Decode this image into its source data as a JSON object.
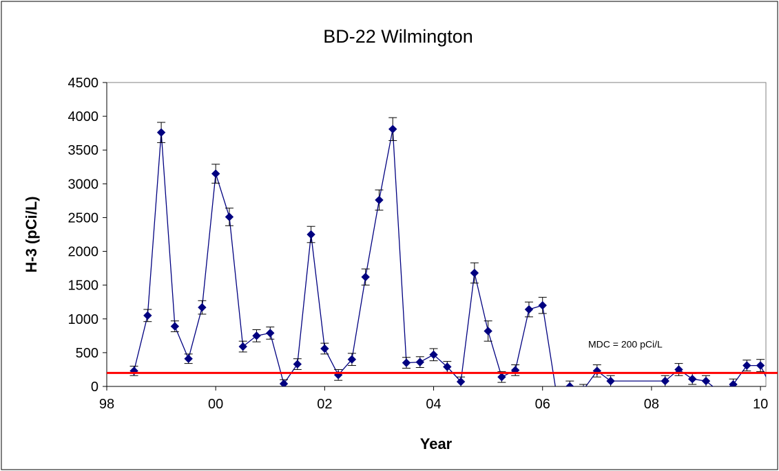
{
  "chart_data": {
    "type": "line",
    "title": "BD-22 Wilmington",
    "xlabel": "Year",
    "ylabel": "H-3 (pCi/L)",
    "xlim": [
      1998,
      2010.1
    ],
    "ylim": [
      0,
      4500
    ],
    "y_ticks": [
      0,
      500,
      1000,
      1500,
      2000,
      2500,
      3000,
      3500,
      4000,
      4500
    ],
    "x_ticks": [
      {
        "value": 1998,
        "label": "98"
      },
      {
        "value": 2000,
        "label": "00"
      },
      {
        "value": 2002,
        "label": "02"
      },
      {
        "value": 2004,
        "label": "04"
      },
      {
        "value": 2006,
        "label": "06"
      },
      {
        "value": 2008,
        "label": "08"
      },
      {
        "value": 2010,
        "label": "10"
      }
    ],
    "grid": false,
    "legend": "none",
    "series": [
      {
        "color": "#000080",
        "marker": "diamond",
        "x": [
          1998.5,
          1998.75,
          1999.0,
          1999.25,
          1999.5,
          1999.75,
          2000.0,
          2000.25,
          2000.5,
          2000.75,
          2001.0,
          2001.25,
          2001.5,
          2001.75,
          2002.0,
          2002.25,
          2002.5,
          2002.75,
          2003.0,
          2003.25,
          2003.5,
          2003.75,
          2004.0,
          2004.25,
          2004.5,
          2004.75,
          2005.0,
          2005.25,
          2005.5,
          2005.75,
          2006.0,
          2006.25,
          2006.5,
          2006.75,
          2007.0,
          2007.25,
          2008.25,
          2008.5,
          2008.75,
          2009.0,
          2009.25,
          2009.5,
          2009.75,
          2010.0,
          2010.25
        ],
        "y": [
          230,
          1050,
          3760,
          890,
          410,
          1170,
          3150,
          2510,
          590,
          750,
          790,
          40,
          330,
          2250,
          560,
          170,
          400,
          1620,
          2760,
          3810,
          350,
          360,
          470,
          290,
          70,
          1680,
          820,
          140,
          240,
          1140,
          1200,
          -80,
          0,
          -50,
          230,
          80,
          80,
          250,
          110,
          80,
          -80,
          30,
          310,
          310,
          -100
        ],
        "error": [
          70,
          90,
          150,
          80,
          70,
          100,
          140,
          130,
          80,
          90,
          90,
          60,
          80,
          120,
          80,
          80,
          90,
          120,
          150,
          170,
          80,
          80,
          90,
          80,
          70,
          150,
          150,
          80,
          80,
          110,
          120,
          80,
          80,
          80,
          90,
          80,
          80,
          90,
          80,
          80,
          80,
          80,
          80,
          90,
          80
        ]
      }
    ],
    "reference_line": {
      "y": 200,
      "color": "#ff0000",
      "label": "MDC = 200 pCi/L"
    }
  }
}
